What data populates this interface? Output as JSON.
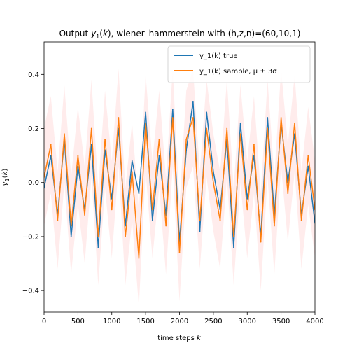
{
  "chart_data": {
    "type": "line",
    "title": "Output y_1(k), wiener_hammerstein with (h,z,n)=(60,10,1)",
    "xlabel": "time steps k",
    "ylabel": "y_1(k)",
    "xlim": [
      0,
      4000
    ],
    "ylim": [
      -0.48,
      0.52
    ],
    "x_ticks": [
      0,
      500,
      1000,
      1500,
      2000,
      2500,
      3000,
      3500,
      4000
    ],
    "y_ticks": [
      -0.4,
      -0.2,
      0.0,
      0.2,
      0.4
    ],
    "y_tick_labels": [
      "−0.4",
      "−0.2",
      "0.0",
      "0.2",
      "0.4"
    ],
    "grid": false,
    "legend_position": "top-right",
    "series": [
      {
        "name": "y_1(k) true",
        "color": "#1f77b4",
        "x": [
          0,
          100,
          200,
          300,
          400,
          500,
          600,
          700,
          800,
          900,
          1000,
          1100,
          1200,
          1300,
          1400,
          1500,
          1600,
          1700,
          1800,
          1900,
          2000,
          2100,
          2200,
          2300,
          2400,
          2500,
          2600,
          2700,
          2800,
          2900,
          3000,
          3100,
          3200,
          3300,
          3400,
          3500,
          3600,
          3700,
          3800,
          3900,
          4000
        ],
        "y": [
          -0.02,
          0.1,
          -0.12,
          0.16,
          -0.2,
          0.06,
          -0.1,
          0.14,
          -0.24,
          0.12,
          -0.06,
          0.2,
          -0.16,
          0.08,
          -0.04,
          0.26,
          -0.14,
          0.1,
          -0.12,
          0.27,
          -0.22,
          0.12,
          0.3,
          -0.18,
          0.26,
          0.04,
          -0.1,
          0.16,
          -0.24,
          0.22,
          -0.06,
          0.1,
          -0.2,
          0.24,
          -0.12,
          0.22,
          0.0,
          0.18,
          -0.12,
          0.06,
          -0.15
        ]
      },
      {
        "name": "y_1(k) sample, μ ± 3σ",
        "color": "#ff7f0e",
        "band_color": "#ff6666",
        "x": [
          0,
          100,
          200,
          300,
          400,
          500,
          600,
          700,
          800,
          900,
          1000,
          1100,
          1200,
          1300,
          1400,
          1500,
          1600,
          1700,
          1800,
          1900,
          2000,
          2100,
          2200,
          2300,
          2400,
          2500,
          2600,
          2700,
          2800,
          2900,
          3000,
          3100,
          3200,
          3300,
          3400,
          3500,
          3600,
          3700,
          3800,
          3900,
          4000
        ],
        "y": [
          0.02,
          0.14,
          -0.14,
          0.18,
          -0.16,
          0.1,
          -0.12,
          0.2,
          -0.2,
          0.16,
          -0.1,
          0.24,
          -0.2,
          0.04,
          -0.28,
          0.22,
          -0.1,
          0.16,
          -0.16,
          0.24,
          -0.26,
          0.16,
          0.24,
          -0.14,
          0.2,
          0.0,
          -0.14,
          0.2,
          -0.2,
          0.18,
          -0.1,
          0.14,
          -0.22,
          0.2,
          -0.16,
          0.24,
          -0.04,
          0.22,
          -0.14,
          0.1,
          -0.1
        ],
        "band_halfwidth": 0.18
      }
    ]
  }
}
